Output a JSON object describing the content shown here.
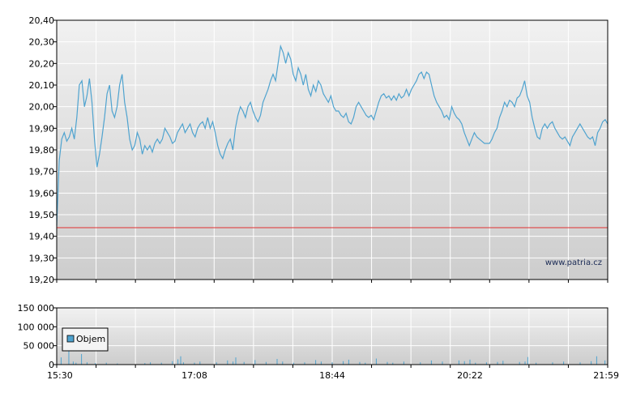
{
  "watermark": "www.patria.cz",
  "chart_data": [
    {
      "type": "line",
      "x_ticks": [
        "15:30",
        "17:08",
        "18:44",
        "20:22",
        "21:59"
      ],
      "y_ticks": [
        "19,20",
        "19,30",
        "19,40",
        "19,50",
        "19,60",
        "19,70",
        "19,80",
        "19,90",
        "20,00",
        "20,10",
        "20,20",
        "20,30",
        "20,40"
      ],
      "ylim": [
        19.2,
        20.4
      ],
      "reference_line": 19.44,
      "series_color": "#4fa3cf",
      "reference_color": "#e03030",
      "grid": true,
      "series": [
        {
          "values": [
            19.45,
            19.75,
            19.85,
            19.88,
            19.84,
            19.86,
            19.9,
            19.85,
            19.95,
            20.1,
            20.12,
            20.0,
            20.05,
            20.13,
            20.02,
            19.85,
            19.72,
            19.78,
            19.86,
            19.95,
            20.06,
            20.1,
            19.98,
            19.95,
            20.0,
            20.1,
            20.15,
            20.02,
            19.95,
            19.85,
            19.8,
            19.82,
            19.88,
            19.85,
            19.78,
            19.82,
            19.8,
            19.82,
            19.79,
            19.83,
            19.85,
            19.83,
            19.85,
            19.9,
            19.88,
            19.86,
            19.83,
            19.84,
            19.88,
            19.9,
            19.92,
            19.88,
            19.9,
            19.92,
            19.88,
            19.86,
            19.9,
            19.92,
            19.93,
            19.9,
            19.95,
            19.9,
            19.93,
            19.88,
            19.82,
            19.78,
            19.76,
            19.8,
            19.83,
            19.85,
            19.8,
            19.9,
            19.96,
            20.0,
            19.98,
            19.95,
            20.0,
            20.02,
            19.98,
            19.95,
            19.93,
            19.96,
            20.02,
            20.05,
            20.08,
            20.12,
            20.15,
            20.12,
            20.2,
            20.28,
            20.25,
            20.2,
            20.25,
            20.22,
            20.15,
            20.12,
            20.18,
            20.15,
            20.1,
            20.15,
            20.08,
            20.05,
            20.1,
            20.07,
            20.12,
            20.1,
            20.06,
            20.04,
            20.02,
            20.05,
            20.0,
            19.98,
            19.98,
            19.96,
            19.95,
            19.97,
            19.93,
            19.92,
            19.95,
            20.0,
            20.02,
            20.0,
            19.98,
            19.96,
            19.95,
            19.96,
            19.94,
            19.98,
            20.02,
            20.05,
            20.06,
            20.04,
            20.05,
            20.03,
            20.05,
            20.03,
            20.06,
            20.04,
            20.05,
            20.08,
            20.05,
            20.08,
            20.1,
            20.12,
            20.15,
            20.16,
            20.13,
            20.16,
            20.15,
            20.1,
            20.05,
            20.02,
            20.0,
            19.98,
            19.95,
            19.96,
            19.94,
            20.0,
            19.97,
            19.95,
            19.94,
            19.92,
            19.88,
            19.85,
            19.82,
            19.85,
            19.88,
            19.86,
            19.85,
            19.84,
            19.83,
            19.83,
            19.83,
            19.85,
            19.88,
            19.9,
            19.95,
            19.98,
            20.02,
            20.0,
            20.03,
            20.02,
            20.0,
            20.04,
            20.05,
            20.08,
            20.12,
            20.05,
            20.02,
            19.95,
            19.9,
            19.86,
            19.85,
            19.9,
            19.92,
            19.9,
            19.92,
            19.93,
            19.9,
            19.88,
            19.86,
            19.85,
            19.86,
            19.84,
            19.82,
            19.86,
            19.88,
            19.9,
            19.92,
            19.9,
            19.88,
            19.86,
            19.85,
            19.86,
            19.82,
            19.88,
            19.9,
            19.93,
            19.94,
            19.92
          ]
        }
      ]
    },
    {
      "type": "bar",
      "x_ticks": [
        "15:30",
        "17:08",
        "18:44",
        "20:22",
        "21:59"
      ],
      "y_ticks": [
        "0",
        "50 000",
        "100 000",
        "150 000"
      ],
      "ylim": [
        0,
        150000
      ],
      "legend": "Objem",
      "legend_placement": "top-left",
      "series_color": "#4fa3cf",
      "grid": true,
      "values": [
        {
          "x": 0.0,
          "v": 12000
        },
        {
          "x": 0.008,
          "v": 19000
        },
        {
          "x": 0.022,
          "v": 36000
        },
        {
          "x": 0.03,
          "v": 8000
        },
        {
          "x": 0.035,
          "v": 5000
        },
        {
          "x": 0.045,
          "v": 28000
        },
        {
          "x": 0.055,
          "v": 6000
        },
        {
          "x": 0.07,
          "v": 4000
        },
        {
          "x": 0.09,
          "v": 5000
        },
        {
          "x": 0.11,
          "v": 3000
        },
        {
          "x": 0.16,
          "v": 4000
        },
        {
          "x": 0.17,
          "v": 6000
        },
        {
          "x": 0.19,
          "v": 5000
        },
        {
          "x": 0.21,
          "v": 9000
        },
        {
          "x": 0.22,
          "v": 14000
        },
        {
          "x": 0.225,
          "v": 22000
        },
        {
          "x": 0.23,
          "v": 6000
        },
        {
          "x": 0.25,
          "v": 5000
        },
        {
          "x": 0.26,
          "v": 8000
        },
        {
          "x": 0.29,
          "v": 6000
        },
        {
          "x": 0.31,
          "v": 11000
        },
        {
          "x": 0.32,
          "v": 8000
        },
        {
          "x": 0.325,
          "v": 19000
        },
        {
          "x": 0.34,
          "v": 7000
        },
        {
          "x": 0.36,
          "v": 12000
        },
        {
          "x": 0.38,
          "v": 7000
        },
        {
          "x": 0.4,
          "v": 15000
        },
        {
          "x": 0.41,
          "v": 8000
        },
        {
          "x": 0.43,
          "v": 5000
        },
        {
          "x": 0.45,
          "v": 6000
        },
        {
          "x": 0.47,
          "v": 12000
        },
        {
          "x": 0.48,
          "v": 8000
        },
        {
          "x": 0.5,
          "v": 6000
        },
        {
          "x": 0.52,
          "v": 9000
        },
        {
          "x": 0.53,
          "v": 13000
        },
        {
          "x": 0.55,
          "v": 7000
        },
        {
          "x": 0.56,
          "v": 5000
        },
        {
          "x": 0.58,
          "v": 16000
        },
        {
          "x": 0.6,
          "v": 7000
        },
        {
          "x": 0.61,
          "v": 5000
        },
        {
          "x": 0.63,
          "v": 8000
        },
        {
          "x": 0.66,
          "v": 6000
        },
        {
          "x": 0.68,
          "v": 11000
        },
        {
          "x": 0.7,
          "v": 8000
        },
        {
          "x": 0.73,
          "v": 11000
        },
        {
          "x": 0.74,
          "v": 9000
        },
        {
          "x": 0.75,
          "v": 13000
        },
        {
          "x": 0.76,
          "v": 5000
        },
        {
          "x": 0.78,
          "v": 6000
        },
        {
          "x": 0.8,
          "v": 7000
        },
        {
          "x": 0.81,
          "v": 10000
        },
        {
          "x": 0.84,
          "v": 7000
        },
        {
          "x": 0.85,
          "v": 8000
        },
        {
          "x": 0.855,
          "v": 20000
        },
        {
          "x": 0.87,
          "v": 5000
        },
        {
          "x": 0.9,
          "v": 6000
        },
        {
          "x": 0.92,
          "v": 8000
        },
        {
          "x": 0.95,
          "v": 6000
        },
        {
          "x": 0.97,
          "v": 9000
        },
        {
          "x": 0.98,
          "v": 22000
        },
        {
          "x": 0.995,
          "v": 11000
        }
      ]
    }
  ]
}
